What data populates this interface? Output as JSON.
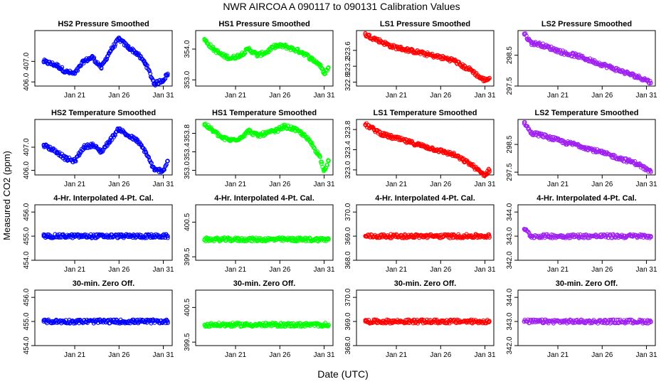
{
  "figure": {
    "title": "NWR   AIRCOA A   090117 to 090131   Calibration Values",
    "ylabel": "Measured CO2 (ppm)",
    "xlabel": "Date (UTC)"
  },
  "chart_data": [
    {
      "type": "scatter",
      "title": "HS2 Pressure Smoothed",
      "color": "#0000FF",
      "x_ticks": [
        "Jan 21",
        "Jan 26",
        "Jan 31"
      ],
      "y_ticks": [
        "406.0",
        "407.0"
      ],
      "ylim": [
        405.8,
        408.5
      ],
      "x": [
        17.5,
        19,
        20,
        21,
        22,
        23,
        24,
        25,
        26,
        27,
        28,
        29,
        30,
        31,
        31.5
      ],
      "values": [
        407.0,
        406.8,
        406.5,
        406.4,
        407.0,
        407.2,
        406.7,
        407.5,
        408.1,
        407.7,
        407.4,
        406.9,
        405.9,
        406.1,
        406.4
      ]
    },
    {
      "type": "scatter",
      "title": "HS1 Pressure Smoothed",
      "color": "#00FF00",
      "x_ticks": [
        "Jan 21",
        "Jan 26",
        "Jan 31"
      ],
      "y_ticks": [
        "353.0",
        "354.0"
      ],
      "ylim": [
        352.8,
        354.6
      ],
      "x": [
        17.5,
        18.5,
        19.5,
        20.5,
        21.5,
        22.5,
        23.5,
        24.5,
        25.5,
        26.5,
        27.5,
        28.5,
        29.5,
        30.5,
        31,
        31.5
      ],
      "values": [
        354.3,
        354.0,
        353.8,
        353.7,
        353.8,
        354.0,
        353.8,
        353.9,
        354.1,
        354.1,
        354.0,
        353.9,
        353.7,
        353.5,
        353.2,
        353.4
      ]
    },
    {
      "type": "scatter",
      "title": "LS1 Pressure Smoothed",
      "color": "#FF0000",
      "x_ticks": [
        "Jan 21",
        "Jan 26",
        "Jan 31"
      ],
      "y_ticks": [
        "322.8",
        "323.2",
        "323.6"
      ],
      "ylim": [
        322.7,
        324.1
      ],
      "x": [
        17.5,
        18.5,
        19.5,
        20.5,
        21.5,
        22.5,
        23.5,
        24.5,
        25.5,
        26.5,
        27.5,
        28.5,
        29.5,
        30.5,
        31,
        31.5
      ],
      "values": [
        324.0,
        323.9,
        323.8,
        323.7,
        323.65,
        323.6,
        323.55,
        323.5,
        323.45,
        323.4,
        323.35,
        323.2,
        323.1,
        322.9,
        322.85,
        322.9
      ]
    },
    {
      "type": "scatter",
      "title": "LS2 Pressure Smoothed",
      "color": "#A020F0",
      "x_ticks": [
        "Jan 21",
        "Jan 26",
        "Jan 31"
      ],
      "y_ticks": [
        "297.5",
        "298.5"
      ],
      "ylim": [
        297.5,
        299.3
      ],
      "x": [
        17.2,
        18,
        19,
        20,
        21,
        22,
        23,
        24,
        25,
        26,
        27,
        28,
        29,
        30,
        31,
        31.5
      ],
      "values": [
        299.2,
        298.9,
        298.85,
        298.75,
        298.65,
        298.55,
        298.5,
        298.4,
        298.3,
        298.2,
        298.1,
        298.0,
        297.9,
        297.8,
        297.7,
        297.6
      ]
    },
    {
      "type": "scatter",
      "title": "HS2 Temperature Smoothed",
      "color": "#0000FF",
      "x_ticks": [
        "Jan 21",
        "Jan 26",
        "Jan 31"
      ],
      "y_ticks": [
        "406.0",
        "407.0"
      ],
      "ylim": [
        405.8,
        408.2
      ],
      "x": [
        17.5,
        19,
        20,
        21,
        22,
        23,
        24,
        25,
        26,
        27,
        28,
        29,
        30,
        31,
        31.5
      ],
      "values": [
        407.1,
        406.8,
        406.5,
        406.4,
        407.0,
        407.1,
        406.8,
        407.3,
        407.8,
        407.5,
        407.3,
        406.8,
        406.0,
        406.0,
        406.4
      ]
    },
    {
      "type": "scatter",
      "title": "HS1 Temperature Smoothed",
      "color": "#00FF00",
      "x_ticks": [
        "Jan 21",
        "Jan 26",
        "Jan 31"
      ],
      "y_ticks": [
        "353.0",
        "353.4",
        "353.8"
      ],
      "ylim": [
        352.9,
        354.1
      ],
      "x": [
        17.5,
        18.5,
        19.5,
        20.5,
        21.5,
        22.5,
        23.5,
        24.5,
        25.5,
        26.5,
        27.5,
        28.5,
        29.5,
        30.5,
        31,
        31.5
      ],
      "values": [
        354.0,
        353.85,
        353.7,
        353.65,
        353.7,
        353.85,
        353.75,
        353.8,
        353.85,
        353.95,
        353.9,
        353.8,
        353.6,
        353.3,
        353.0,
        353.2
      ]
    },
    {
      "type": "scatter",
      "title": "LS1 Temperature Smoothed",
      "color": "#FF0000",
      "x_ticks": [
        "Jan 21",
        "Jan 26",
        "Jan 31"
      ],
      "y_ticks": [
        "323.0",
        "323.4",
        "323.8"
      ],
      "ylim": [
        322.9,
        324.0
      ],
      "x": [
        17.5,
        18.5,
        19.5,
        20.5,
        21.5,
        22.5,
        23.5,
        24.5,
        25.5,
        26.5,
        27.5,
        28.5,
        29.5,
        30.5,
        31,
        31.5
      ],
      "values": [
        323.9,
        323.8,
        323.7,
        323.65,
        323.6,
        323.55,
        323.5,
        323.45,
        323.4,
        323.35,
        323.3,
        323.2,
        323.1,
        322.95,
        322.9,
        323.0
      ]
    },
    {
      "type": "scatter",
      "title": "LS2 Temperature Smoothed",
      "color": "#A020F0",
      "x_ticks": [
        "Jan 21",
        "Jan 26",
        "Jan 31"
      ],
      "y_ticks": [
        "297.5",
        "298.5"
      ],
      "ylim": [
        297.4,
        299.4
      ],
      "x": [
        17.2,
        18,
        19,
        20,
        21,
        22,
        23,
        24,
        25,
        26,
        27,
        28,
        29,
        30,
        31,
        31.5
      ],
      "values": [
        299.3,
        298.9,
        298.85,
        298.75,
        298.65,
        298.55,
        298.5,
        298.4,
        298.3,
        298.2,
        298.1,
        298.0,
        297.9,
        297.8,
        297.6,
        297.5
      ]
    },
    {
      "type": "scatter",
      "title": "4-Hr. Interpolated 4-Pt. Cal.",
      "color": "#0000FF",
      "x_ticks": [
        "Jan 21",
        "Jan 26",
        "Jan 31"
      ],
      "y_ticks": [
        "454.0",
        "455.0",
        "456.0"
      ],
      "ylim": [
        454.0,
        456.3
      ],
      "x": [
        17.5,
        31.5
      ],
      "values": [
        455.0,
        455.0
      ]
    },
    {
      "type": "scatter",
      "title": "4-Hr. Interpolated 4-Pt. Cal.",
      "color": "#00FF00",
      "x_ticks": [
        "Jan 21",
        "Jan 26",
        "Jan 31"
      ],
      "y_ticks": [
        "399.5",
        "400.5"
      ],
      "ylim": [
        399.4,
        401.0
      ],
      "x": [
        17.5,
        31.5
      ],
      "values": [
        400.0,
        400.0
      ]
    },
    {
      "type": "scatter",
      "title": "4-Hr. Interpolated 4-Pt. Cal.",
      "color": "#FF0000",
      "x_ticks": [
        "Jan 21",
        "Jan 26",
        "Jan 31"
      ],
      "y_ticks": [
        "368.0",
        "369.0",
        "370.0"
      ],
      "ylim": [
        368.0,
        370.3
      ],
      "x": [
        17.5,
        31.5
      ],
      "values": [
        369.0,
        369.0
      ]
    },
    {
      "type": "scatter",
      "title": "4-Hr. Interpolated 4-Pt. Cal.",
      "color": "#A020F0",
      "x_ticks": [
        "Jan 21",
        "Jan 26",
        "Jan 31"
      ],
      "y_ticks": [
        "342.0",
        "343.0",
        "344.0"
      ],
      "ylim": [
        342.0,
        344.3
      ],
      "x": [
        17.2,
        18,
        31.5
      ],
      "values": [
        343.3,
        343.0,
        343.0
      ]
    },
    {
      "type": "scatter",
      "title": "30-min. Zero Off.",
      "color": "#0000FF",
      "x_ticks": [
        "Jan 21",
        "Jan 26",
        "Jan 31"
      ],
      "y_ticks": [
        "454.0",
        "455.0",
        "456.0"
      ],
      "ylim": [
        454.0,
        456.3
      ],
      "x": [
        17.5,
        31.5
      ],
      "values": [
        455.0,
        455.0
      ]
    },
    {
      "type": "scatter",
      "title": "30-min. Zero Off.",
      "color": "#00FF00",
      "x_ticks": [
        "Jan 21",
        "Jan 26",
        "Jan 31"
      ],
      "y_ticks": [
        "399.5",
        "400.5"
      ],
      "ylim": [
        399.4,
        401.0
      ],
      "x": [
        17.5,
        31.5
      ],
      "values": [
        400.0,
        400.0
      ]
    },
    {
      "type": "scatter",
      "title": "30-min. Zero Off.",
      "color": "#FF0000",
      "x_ticks": [
        "Jan 21",
        "Jan 26",
        "Jan 31"
      ],
      "y_ticks": [
        "368.0",
        "369.0",
        "370.0"
      ],
      "ylim": [
        368.0,
        370.3
      ],
      "x": [
        17.5,
        31.5
      ],
      "values": [
        369.0,
        369.0
      ]
    },
    {
      "type": "scatter",
      "title": "30-min. Zero Off.",
      "color": "#A020F0",
      "x_ticks": [
        "Jan 21",
        "Jan 26",
        "Jan 31"
      ],
      "y_ticks": [
        "342.0",
        "343.0",
        "344.0"
      ],
      "ylim": [
        342.0,
        344.3
      ],
      "x": [
        17.2,
        31.5
      ],
      "values": [
        343.0,
        343.0
      ]
    }
  ]
}
